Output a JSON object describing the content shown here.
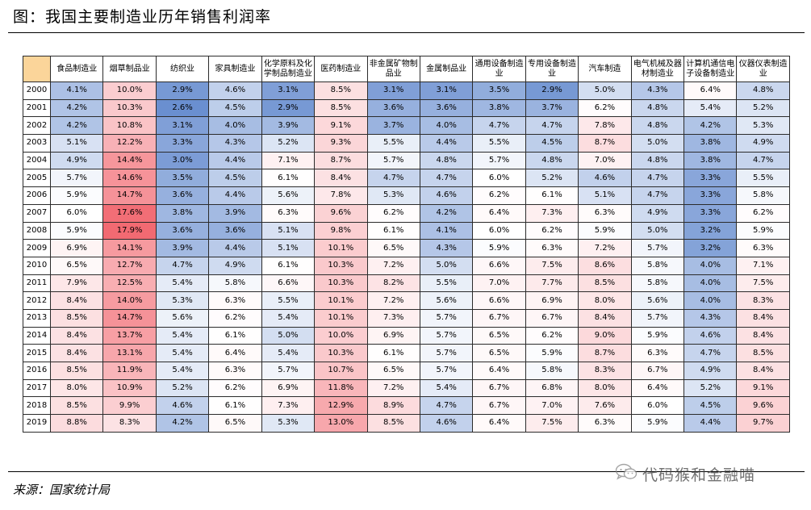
{
  "title": "图：我国主要制造业历年销售利润率",
  "source": "来源：国家统计局",
  "watermark": "代码猴和金融喵",
  "corner": "",
  "columns": [
    "食品制造业",
    "烟草制品业",
    "纺织业",
    "家具制造业",
    "化学原料及化学制品制造业",
    "医药制造业",
    "非金属矿物制品业",
    "金属制品业",
    "通用设备制造业",
    "专用设备制造业",
    "汽车制造",
    "电气机械及器材制造业",
    "计算机通信电子设备制造业",
    "仪器仪表制造业"
  ],
  "rows": [
    {
      "year": "2000",
      "values": [
        "4.1%",
        "10.0%",
        "2.9%",
        "4.6%",
        "3.1%",
        "8.5%",
        "3.1%",
        "3.1%",
        "3.5%",
        "2.9%",
        "5.0%",
        "4.3%",
        "6.4%",
        "4.8%"
      ]
    },
    {
      "year": "2001",
      "values": [
        "4.2%",
        "10.3%",
        "2.6%",
        "4.5%",
        "2.9%",
        "8.5%",
        "3.6%",
        "3.6%",
        "3.8%",
        "3.7%",
        "6.2%",
        "4.8%",
        "5.4%",
        "5.2%"
      ]
    },
    {
      "year": "2002",
      "values": [
        "4.2%",
        "10.8%",
        "3.1%",
        "4.0%",
        "3.9%",
        "9.1%",
        "3.7%",
        "4.0%",
        "4.7%",
        "4.7%",
        "7.8%",
        "4.8%",
        "4.2%",
        "5.3%"
      ]
    },
    {
      "year": "2003",
      "values": [
        "5.1%",
        "12.2%",
        "3.3%",
        "4.3%",
        "5.2%",
        "9.3%",
        "5.5%",
        "4.4%",
        "5.5%",
        "4.5%",
        "8.7%",
        "5.0%",
        "3.8%",
        "4.9%"
      ]
    },
    {
      "year": "2004",
      "values": [
        "4.9%",
        "14.4%",
        "3.0%",
        "4.4%",
        "7.1%",
        "8.7%",
        "5.7%",
        "4.8%",
        "5.7%",
        "4.8%",
        "7.0%",
        "4.8%",
        "3.8%",
        "4.7%"
      ]
    },
    {
      "year": "2005",
      "values": [
        "5.7%",
        "14.6%",
        "3.5%",
        "4.5%",
        "6.1%",
        "8.4%",
        "4.7%",
        "4.7%",
        "6.0%",
        "5.2%",
        "4.6%",
        "4.7%",
        "3.3%",
        "5.5%"
      ]
    },
    {
      "year": "2006",
      "values": [
        "5.9%",
        "14.7%",
        "3.6%",
        "4.4%",
        "5.6%",
        "7.8%",
        "5.3%",
        "4.6%",
        "6.2%",
        "6.1%",
        "5.1%",
        "4.7%",
        "3.3%",
        "5.8%"
      ]
    },
    {
      "year": "2007",
      "values": [
        "6.0%",
        "17.6%",
        "3.8%",
        "3.9%",
        "6.3%",
        "9.6%",
        "6.2%",
        "4.2%",
        "6.4%",
        "7.3%",
        "6.3%",
        "4.9%",
        "3.3%",
        "6.2%"
      ]
    },
    {
      "year": "2008",
      "values": [
        "5.9%",
        "17.9%",
        "3.6%",
        "3.6%",
        "5.1%",
        "9.8%",
        "6.1%",
        "4.1%",
        "6.0%",
        "6.2%",
        "5.9%",
        "5.0%",
        "3.2%",
        "5.9%"
      ]
    },
    {
      "year": "2009",
      "values": [
        "6.9%",
        "14.1%",
        "3.9%",
        "4.4%",
        "5.1%",
        "10.1%",
        "6.5%",
        "4.3%",
        "5.9%",
        "6.3%",
        "7.2%",
        "5.7%",
        "3.2%",
        "6.3%"
      ]
    },
    {
      "year": "2010",
      "values": [
        "6.5%",
        "12.7%",
        "4.7%",
        "4.9%",
        "6.1%",
        "10.3%",
        "7.2%",
        "5.0%",
        "6.6%",
        "7.5%",
        "8.6%",
        "5.8%",
        "4.0%",
        "7.1%"
      ]
    },
    {
      "year": "2011",
      "values": [
        "7.9%",
        "12.5%",
        "5.4%",
        "5.8%",
        "6.6%",
        "10.3%",
        "8.2%",
        "5.5%",
        "7.0%",
        "7.7%",
        "8.5%",
        "5.8%",
        "4.0%",
        "7.5%"
      ]
    },
    {
      "year": "2012",
      "values": [
        "8.4%",
        "14.0%",
        "5.3%",
        "6.3%",
        "5.5%",
        "10.1%",
        "7.2%",
        "5.6%",
        "6.6%",
        "6.9%",
        "8.0%",
        "5.6%",
        "4.0%",
        "8.3%"
      ]
    },
    {
      "year": "2013",
      "values": [
        "8.5%",
        "14.7%",
        "5.6%",
        "6.2%",
        "5.4%",
        "10.1%",
        "7.3%",
        "5.7%",
        "6.7%",
        "6.7%",
        "8.4%",
        "5.7%",
        "4.3%",
        "8.4%"
      ]
    },
    {
      "year": "2014",
      "values": [
        "8.4%",
        "13.7%",
        "5.4%",
        "6.1%",
        "5.0%",
        "10.0%",
        "6.9%",
        "5.7%",
        "6.5%",
        "6.2%",
        "9.0%",
        "5.9%",
        "4.6%",
        "8.4%"
      ]
    },
    {
      "year": "2015",
      "values": [
        "8.4%",
        "13.1%",
        "5.4%",
        "6.4%",
        "5.4%",
        "10.3%",
        "6.1%",
        "5.7%",
        "6.5%",
        "5.9%",
        "8.7%",
        "6.3%",
        "4.7%",
        "8.5%"
      ]
    },
    {
      "year": "2016",
      "values": [
        "8.5%",
        "11.9%",
        "5.4%",
        "6.3%",
        "5.7%",
        "10.7%",
        "6.5%",
        "5.7%",
        "6.4%",
        "5.8%",
        "8.3%",
        "6.7%",
        "4.9%",
        "8.4%"
      ]
    },
    {
      "year": "2017",
      "values": [
        "8.0%",
        "10.9%",
        "5.2%",
        "6.2%",
        "6.9%",
        "11.8%",
        "7.2%",
        "5.4%",
        "6.7%",
        "6.8%",
        "8.0%",
        "6.4%",
        "5.2%",
        "9.1%"
      ]
    },
    {
      "year": "2018",
      "values": [
        "8.5%",
        "9.9%",
        "4.6%",
        "6.1%",
        "7.3%",
        "12.9%",
        "8.9%",
        "4.7%",
        "6.7%",
        "7.0%",
        "7.6%",
        "6.0%",
        "4.5%",
        "9.6%"
      ]
    },
    {
      "year": "2019",
      "values": [
        "8.8%",
        "8.3%",
        "4.2%",
        "6.5%",
        "5.3%",
        "13.0%",
        "8.5%",
        "4.6%",
        "6.4%",
        "7.5%",
        "6.3%",
        "5.9%",
        "4.4%",
        "9.7%"
      ]
    }
  ],
  "colors": {
    "low": "#6a8fd0",
    "mid": "#ffffff",
    "high": "#f26a72",
    "corner": "#fbd59a",
    "grid": "#2b2b2b"
  },
  "scale": {
    "min": 2.6,
    "mid": 6.0,
    "max": 17.9
  }
}
